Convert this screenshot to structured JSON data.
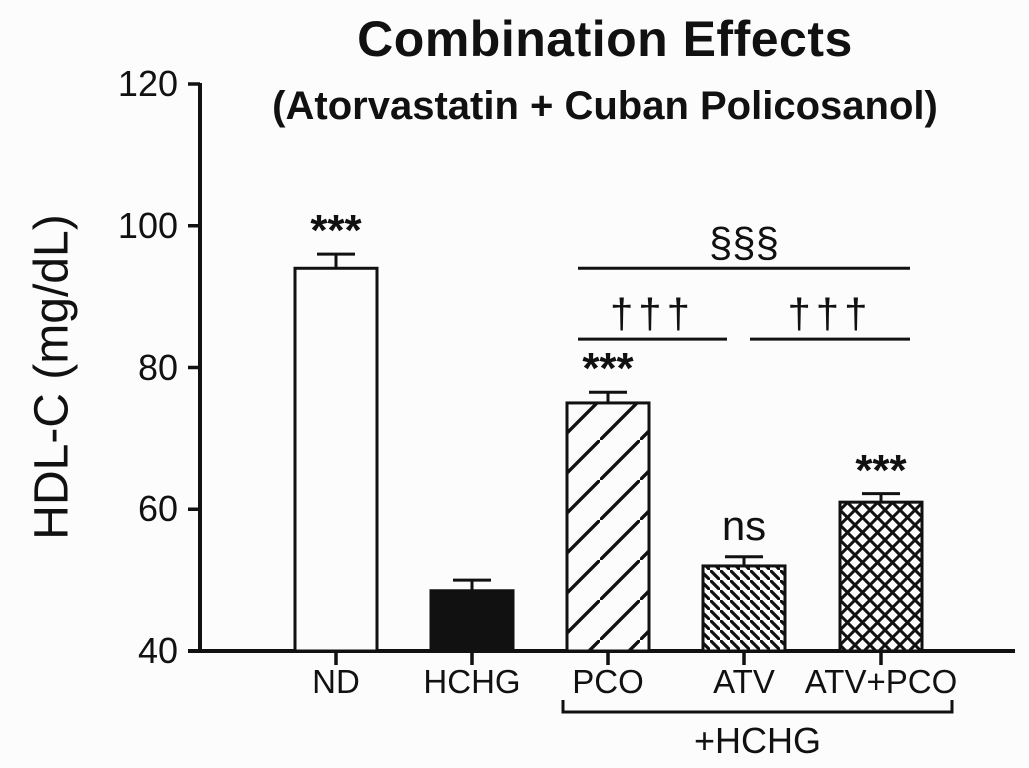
{
  "chart_data": {
    "type": "bar",
    "title": "Combination Effects",
    "subtitle": "(Atorvastatin + Cuban Policosanol)",
    "xlabel": "",
    "ylabel": "HDL-C (mg/dL)",
    "ylim": [
      40,
      120
    ],
    "yticks": [
      40,
      60,
      80,
      100,
      120
    ],
    "categories": [
      "ND",
      "HCHG",
      "PCO",
      "ATV",
      "ATV+PCO"
    ],
    "values": [
      94,
      48.5,
      75,
      52,
      61
    ],
    "errors_sd_upper": [
      2,
      1.5,
      1.5,
      1.3,
      1.2
    ],
    "bar_annotations": [
      "***",
      "",
      "***",
      "ns",
      "***"
    ],
    "bar_fill_styles": [
      "white",
      "black",
      "diagonal-hatch-wide",
      "diagonal-hatch-fine-reverse",
      "crosshatch"
    ],
    "significance_lines": [
      {
        "label": "§§§",
        "from": "PCO",
        "to": "ATV+PCO",
        "y_value": 94
      },
      {
        "label": "†††",
        "from": "PCO",
        "to": "ATV",
        "y_value": 84
      },
      {
        "label": "†††",
        "from": "ATV",
        "to": "ATV+PCO",
        "y_value": 84
      }
    ],
    "group_bracket": {
      "label": "+HCHG",
      "from": "PCO",
      "to": "ATV+PCO"
    },
    "legend": "none",
    "grid": false,
    "colors": {
      "foreground": "#111111",
      "background": "#fcfcfc"
    }
  }
}
